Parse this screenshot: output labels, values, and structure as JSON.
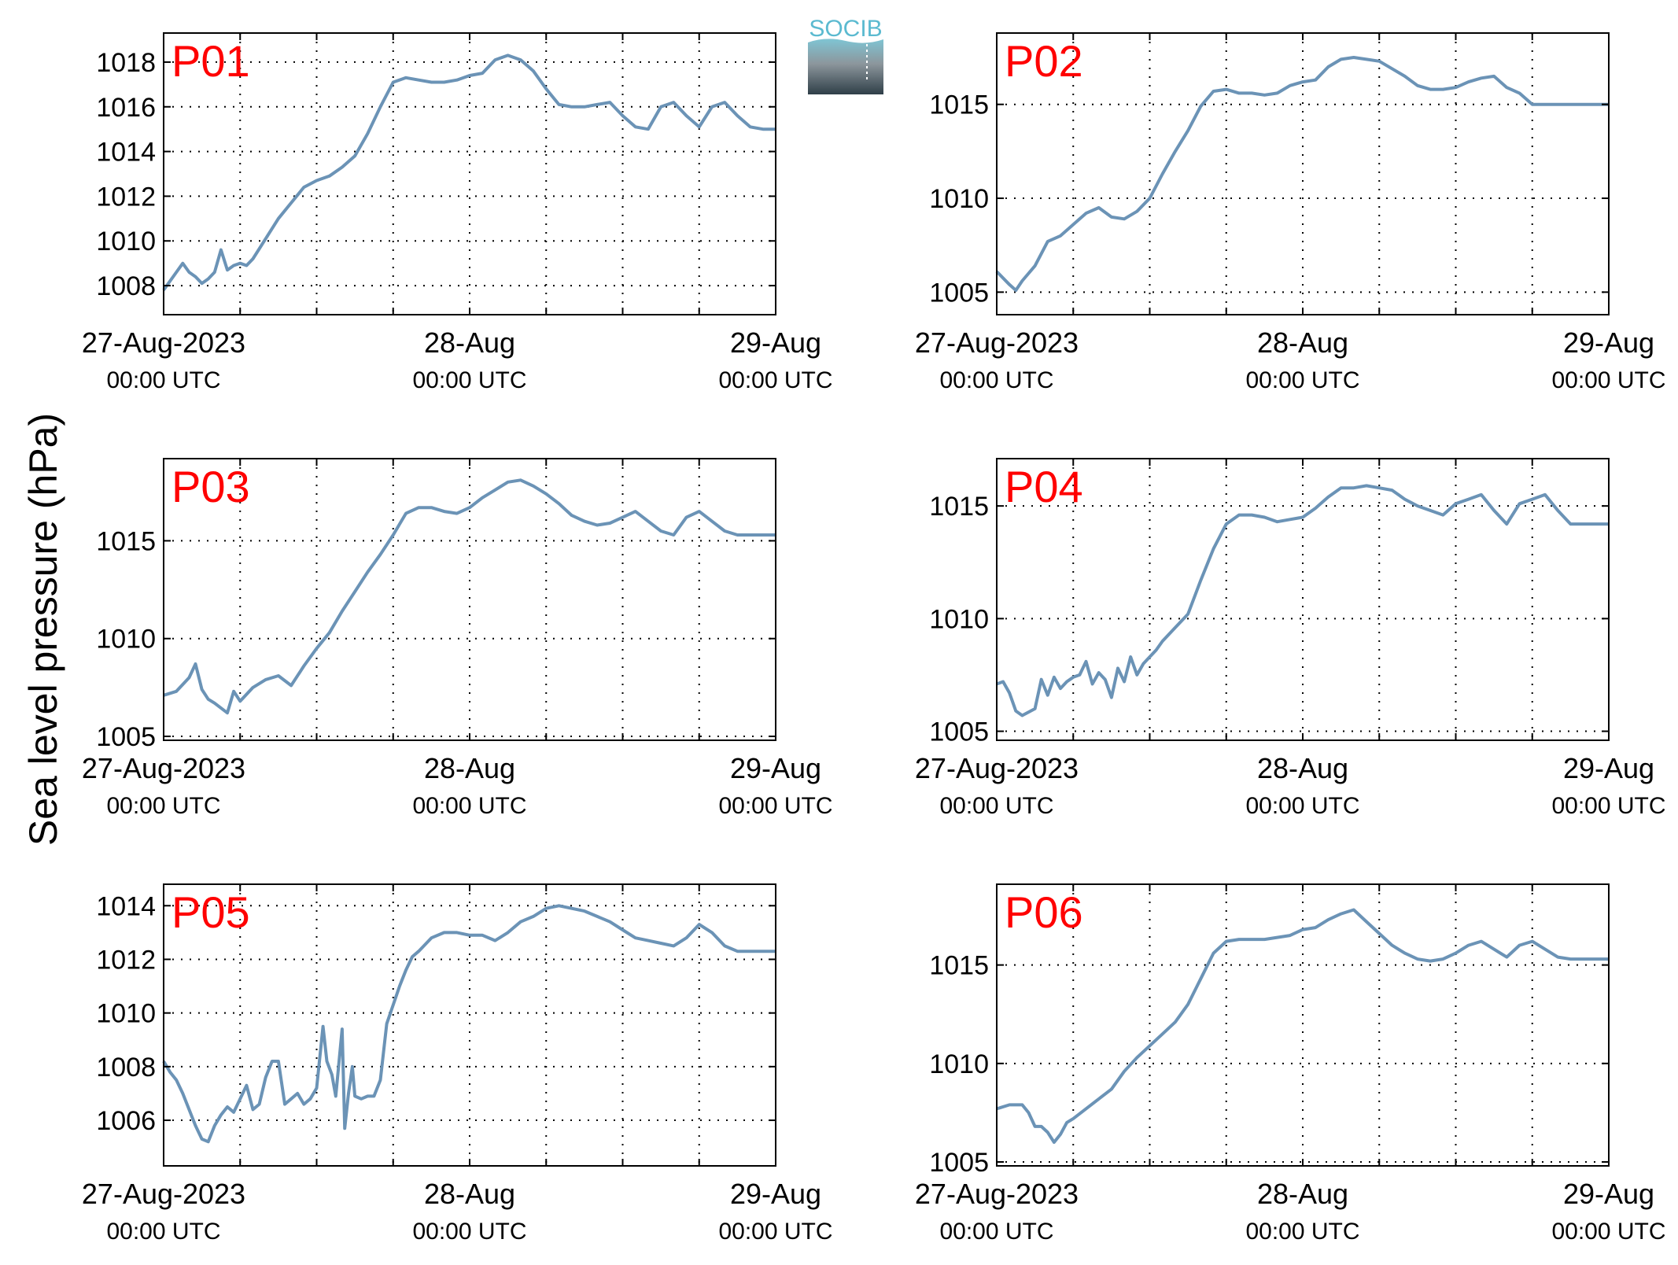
{
  "figure": {
    "ylabel": "Sea level pressure (hPa)",
    "logo_text": "SOCIB"
  },
  "colors": {
    "line": "#6b93b6",
    "panel_label": "#ff0000",
    "axis": "#000000",
    "grid": "#000000",
    "logo_top": "#5bbad0",
    "logo_dark": "#2f3f48"
  },
  "chart_data": [
    {
      "type": "line",
      "panel_label": "P01",
      "ylim": [
        1006.7,
        1019.3
      ],
      "yticks": [
        1008,
        1010,
        1012,
        1014,
        1016,
        1018
      ],
      "x_range_hours": [
        0,
        48
      ],
      "xtick_labels": [
        {
          "hour": 0,
          "date": "27-Aug-2023",
          "time": "00:00 UTC"
        },
        {
          "hour": 24,
          "date": "28-Aug",
          "time": "00:00 UTC"
        },
        {
          "hour": 48,
          "date": "29-Aug",
          "time": "00:00 UTC"
        }
      ],
      "minor_ticks_hours": [
        6,
        12,
        18,
        30,
        36,
        42
      ],
      "grid": true,
      "series": [
        {
          "x": [
            0,
            1,
            1.5,
            2,
            2.5,
            3,
            3.5,
            4,
            4.5,
            5,
            5.5,
            6,
            6.5,
            7,
            8,
            9,
            10,
            11,
            12,
            13,
            14,
            15,
            16,
            17,
            18,
            19,
            20,
            21,
            22,
            23,
            24,
            25,
            26,
            27,
            28,
            29,
            30,
            31,
            32,
            33,
            34,
            35,
            36,
            37,
            38,
            39,
            40,
            41,
            42,
            43,
            44,
            45,
            46,
            47,
            48
          ],
          "y": [
            1007.8,
            1008.6,
            1009.0,
            1008.6,
            1008.4,
            1008.1,
            1008.3,
            1008.6,
            1009.6,
            1008.7,
            1008.9,
            1009.0,
            1008.9,
            1009.2,
            1010.1,
            1011.0,
            1011.7,
            1012.4,
            1012.7,
            1012.9,
            1013.3,
            1013.8,
            1014.8,
            1016.0,
            1017.1,
            1017.3,
            1017.2,
            1017.1,
            1017.1,
            1017.2,
            1017.4,
            1017.5,
            1018.1,
            1018.3,
            1018.1,
            1017.6,
            1016.8,
            1016.1,
            1016.0,
            1016.0,
            1016.1,
            1016.2,
            1015.6,
            1015.1,
            1015.0,
            1016.0,
            1016.2,
            1015.6,
            1015.1,
            1016.0,
            1016.2,
            1015.6,
            1015.1,
            1015.0,
            1015.0
          ]
        }
      ]
    },
    {
      "type": "line",
      "panel_label": "P02",
      "ylim": [
        1003.8,
        1018.8
      ],
      "yticks": [
        1005,
        1010,
        1015
      ],
      "x_range_hours": [
        0,
        48
      ],
      "xtick_labels": [
        {
          "hour": 0,
          "date": "27-Aug-2023",
          "time": "00:00 UTC"
        },
        {
          "hour": 24,
          "date": "28-Aug",
          "time": "00:00 UTC"
        },
        {
          "hour": 48,
          "date": "29-Aug",
          "time": "00:00 UTC"
        }
      ],
      "minor_ticks_hours": [
        6,
        12,
        18,
        30,
        36,
        42
      ],
      "grid": true,
      "series": [
        {
          "x": [
            0,
            1,
            1.5,
            2,
            3,
            4,
            5,
            6,
            7,
            8,
            9,
            10,
            11,
            12,
            13,
            14,
            15,
            16,
            17,
            18,
            19,
            20,
            21,
            22,
            23,
            24,
            25,
            26,
            27,
            28,
            29,
            30,
            31,
            32,
            33,
            34,
            35,
            36,
            37,
            38,
            39,
            40,
            41,
            42,
            43,
            44,
            45,
            46,
            47,
            48
          ],
          "y": [
            1006.1,
            1005.4,
            1005.1,
            1005.6,
            1006.4,
            1007.7,
            1008.0,
            1008.6,
            1009.2,
            1009.5,
            1009.0,
            1008.9,
            1009.3,
            1010.0,
            1011.3,
            1012.5,
            1013.6,
            1014.9,
            1015.7,
            1015.8,
            1015.6,
            1015.6,
            1015.5,
            1015.6,
            1016.0,
            1016.2,
            1016.3,
            1017.0,
            1017.4,
            1017.5,
            1017.4,
            1017.3,
            1016.9,
            1016.5,
            1016.0,
            1015.8,
            1015.8,
            1015.9,
            1016.2,
            1016.4,
            1016.5,
            1015.9,
            1015.6,
            1015.0,
            1015.0,
            1015.0,
            1015.0,
            1015.0,
            1015.0,
            1015.0
          ]
        }
      ]
    },
    {
      "type": "line",
      "panel_label": "P03",
      "ylim": [
        1004.8,
        1019.2
      ],
      "yticks": [
        1005,
        1010,
        1015
      ],
      "x_range_hours": [
        0,
        48
      ],
      "xtick_labels": [
        {
          "hour": 0,
          "date": "27-Aug-2023",
          "time": "00:00 UTC"
        },
        {
          "hour": 24,
          "date": "28-Aug",
          "time": "00:00 UTC"
        },
        {
          "hour": 48,
          "date": "29-Aug",
          "time": "00:00 UTC"
        }
      ],
      "minor_ticks_hours": [
        6,
        12,
        18,
        30,
        36,
        42
      ],
      "grid": true,
      "series": [
        {
          "x": [
            0,
            1,
            2,
            2.5,
            3,
            3.5,
            4,
            5,
            5.5,
            6,
            7,
            8,
            9,
            10,
            11,
            12,
            13,
            14,
            15,
            16,
            17,
            18,
            19,
            20,
            21,
            22,
            23,
            24,
            25,
            26,
            27,
            28,
            29,
            30,
            31,
            32,
            33,
            34,
            35,
            36,
            37,
            38,
            39,
            40,
            41,
            42,
            43,
            44,
            45,
            46,
            47,
            48
          ],
          "y": [
            1007.1,
            1007.3,
            1008.0,
            1008.7,
            1007.4,
            1006.9,
            1006.7,
            1006.2,
            1007.3,
            1006.8,
            1007.5,
            1007.9,
            1008.1,
            1007.6,
            1008.6,
            1009.5,
            1010.3,
            1011.4,
            1012.4,
            1013.4,
            1014.3,
            1015.3,
            1016.4,
            1016.7,
            1016.7,
            1016.5,
            1016.4,
            1016.7,
            1017.2,
            1017.6,
            1018.0,
            1018.1,
            1017.8,
            1017.4,
            1016.9,
            1016.3,
            1016.0,
            1015.8,
            1015.9,
            1016.2,
            1016.5,
            1016.0,
            1015.5,
            1015.3,
            1016.2,
            1016.5,
            1016.0,
            1015.5,
            1015.3,
            1015.3,
            1015.3,
            1015.3
          ]
        }
      ]
    },
    {
      "type": "line",
      "panel_label": "P04",
      "ylim": [
        1004.6,
        1017.1
      ],
      "yticks": [
        1005,
        1010,
        1015
      ],
      "x_range_hours": [
        0,
        48
      ],
      "xtick_labels": [
        {
          "hour": 0,
          "date": "27-Aug-2023",
          "time": "00:00 UTC"
        },
        {
          "hour": 24,
          "date": "28-Aug",
          "time": "00:00 UTC"
        },
        {
          "hour": 48,
          "date": "29-Aug",
          "time": "00:00 UTC"
        }
      ],
      "minor_ticks_hours": [
        6,
        12,
        18,
        30,
        36,
        42
      ],
      "grid": true,
      "series": [
        {
          "x": [
            0,
            0.5,
            1,
            1.5,
            2,
            3,
            3.5,
            4,
            4.5,
            5,
            5.5,
            6,
            6.5,
            7,
            7.5,
            8,
            8.5,
            9,
            9.5,
            10,
            10.5,
            11,
            11.5,
            12,
            12.5,
            13,
            14,
            15,
            16,
            17,
            18,
            19,
            20,
            21,
            22,
            23,
            24,
            25,
            26,
            27,
            28,
            29,
            30,
            31,
            32,
            33,
            34,
            35,
            36,
            37,
            38,
            39,
            40,
            41,
            42,
            43,
            44,
            45,
            46,
            47,
            48
          ],
          "y": [
            1007.1,
            1007.2,
            1006.7,
            1005.9,
            1005.7,
            1006.0,
            1007.3,
            1006.6,
            1007.4,
            1006.9,
            1007.2,
            1007.4,
            1007.5,
            1008.1,
            1007.1,
            1007.6,
            1007.3,
            1006.5,
            1007.8,
            1007.2,
            1008.3,
            1007.5,
            1008.0,
            1008.3,
            1008.6,
            1009.0,
            1009.6,
            1010.2,
            1011.7,
            1013.1,
            1014.2,
            1014.6,
            1014.6,
            1014.5,
            1014.3,
            1014.4,
            1014.5,
            1014.9,
            1015.4,
            1015.8,
            1015.8,
            1015.9,
            1015.8,
            1015.7,
            1015.3,
            1015.0,
            1014.8,
            1014.6,
            1015.1,
            1015.3,
            1015.5,
            1014.8,
            1014.2,
            1015.1,
            1015.3,
            1015.5,
            1014.8,
            1014.2,
            1014.2,
            1014.2,
            1014.2
          ]
        }
      ]
    },
    {
      "type": "line",
      "panel_label": "P05",
      "ylim": [
        1004.3,
        1014.8
      ],
      "yticks": [
        1006,
        1008,
        1010,
        1012,
        1014
      ],
      "x_range_hours": [
        0,
        48
      ],
      "xtick_labels": [
        {
          "hour": 0,
          "date": "27-Aug-2023",
          "time": "00:00 UTC"
        },
        {
          "hour": 24,
          "date": "28-Aug",
          "time": "00:00 UTC"
        },
        {
          "hour": 48,
          "date": "29-Aug",
          "time": "00:00 UTC"
        }
      ],
      "minor_ticks_hours": [
        6,
        12,
        18,
        30,
        36,
        42
      ],
      "grid": true,
      "series": [
        {
          "x": [
            0,
            0.5,
            1,
            1.5,
            2,
            2.5,
            3,
            3.5,
            4,
            4.5,
            5,
            5.5,
            6,
            6.5,
            7,
            7.5,
            8,
            8.5,
            9,
            9.5,
            10,
            10.5,
            11,
            11.5,
            12,
            12.5,
            12.8,
            13.2,
            13.5,
            14,
            14.2,
            14.5,
            14.8,
            15,
            15.5,
            16,
            16.5,
            17,
            17.5,
            18,
            18.5,
            19,
            19.5,
            20,
            21,
            22,
            23,
            24,
            25,
            26,
            27,
            28,
            29,
            30,
            31,
            32,
            33,
            34,
            35,
            36,
            37,
            38,
            39,
            40,
            41,
            42,
            43,
            44,
            45,
            46,
            47,
            48
          ],
          "y": [
            1008.2,
            1007.8,
            1007.5,
            1007.0,
            1006.4,
            1005.8,
            1005.3,
            1005.2,
            1005.8,
            1006.2,
            1006.5,
            1006.3,
            1006.8,
            1007.3,
            1006.4,
            1006.6,
            1007.6,
            1008.2,
            1008.2,
            1006.6,
            1006.8,
            1007.0,
            1006.6,
            1006.8,
            1007.2,
            1009.5,
            1008.2,
            1007.7,
            1006.9,
            1009.4,
            1005.7,
            1007.0,
            1008.0,
            1006.9,
            1006.8,
            1006.9,
            1006.9,
            1007.5,
            1009.6,
            1010.3,
            1011.0,
            1011.6,
            1012.1,
            1012.3,
            1012.8,
            1013.0,
            1013.0,
            1012.9,
            1012.9,
            1012.7,
            1013.0,
            1013.4,
            1013.6,
            1013.9,
            1014.0,
            1013.9,
            1013.8,
            1013.6,
            1013.4,
            1013.1,
            1012.8,
            1012.7,
            1012.6,
            1012.5,
            1012.8,
            1013.3,
            1013.0,
            1012.5,
            1012.3,
            1012.3,
            1012.3,
            1012.3
          ]
        }
      ]
    },
    {
      "type": "line",
      "panel_label": "P06",
      "ylim": [
        1004.8,
        1019.1
      ],
      "yticks": [
        1005,
        1010,
        1015
      ],
      "x_range_hours": [
        0,
        48
      ],
      "xtick_labels": [
        {
          "hour": 0,
          "date": "27-Aug-2023",
          "time": "00:00 UTC"
        },
        {
          "hour": 24,
          "date": "28-Aug",
          "time": "00:00 UTC"
        },
        {
          "hour": 48,
          "date": "29-Aug",
          "time": "00:00 UTC"
        }
      ],
      "minor_ticks_hours": [
        6,
        12,
        18,
        30,
        36,
        42
      ],
      "grid": true,
      "series": [
        {
          "x": [
            0,
            1,
            2,
            2.5,
            3,
            3.5,
            4,
            4.5,
            5,
            5.5,
            6,
            7,
            8,
            9,
            10,
            11,
            12,
            13,
            14,
            15,
            16,
            17,
            18,
            19,
            20,
            21,
            22,
            23,
            24,
            25,
            26,
            27,
            28,
            29,
            30,
            31,
            32,
            33,
            34,
            35,
            36,
            37,
            38,
            39,
            40,
            41,
            42,
            43,
            44,
            45,
            46,
            47,
            48
          ],
          "y": [
            1007.7,
            1007.9,
            1007.9,
            1007.5,
            1006.8,
            1006.8,
            1006.5,
            1006.0,
            1006.4,
            1007.0,
            1007.2,
            1007.7,
            1008.2,
            1008.7,
            1009.6,
            1010.3,
            1010.9,
            1011.5,
            1012.1,
            1013.0,
            1014.3,
            1015.6,
            1016.2,
            1016.3,
            1016.3,
            1016.3,
            1016.4,
            1016.5,
            1016.8,
            1016.9,
            1017.3,
            1017.6,
            1017.8,
            1017.2,
            1016.6,
            1016.0,
            1015.6,
            1015.3,
            1015.2,
            1015.3,
            1015.6,
            1016.0,
            1016.2,
            1015.8,
            1015.4,
            1016.0,
            1016.2,
            1015.8,
            1015.4,
            1015.3,
            1015.3,
            1015.3,
            1015.3
          ]
        }
      ]
    }
  ]
}
